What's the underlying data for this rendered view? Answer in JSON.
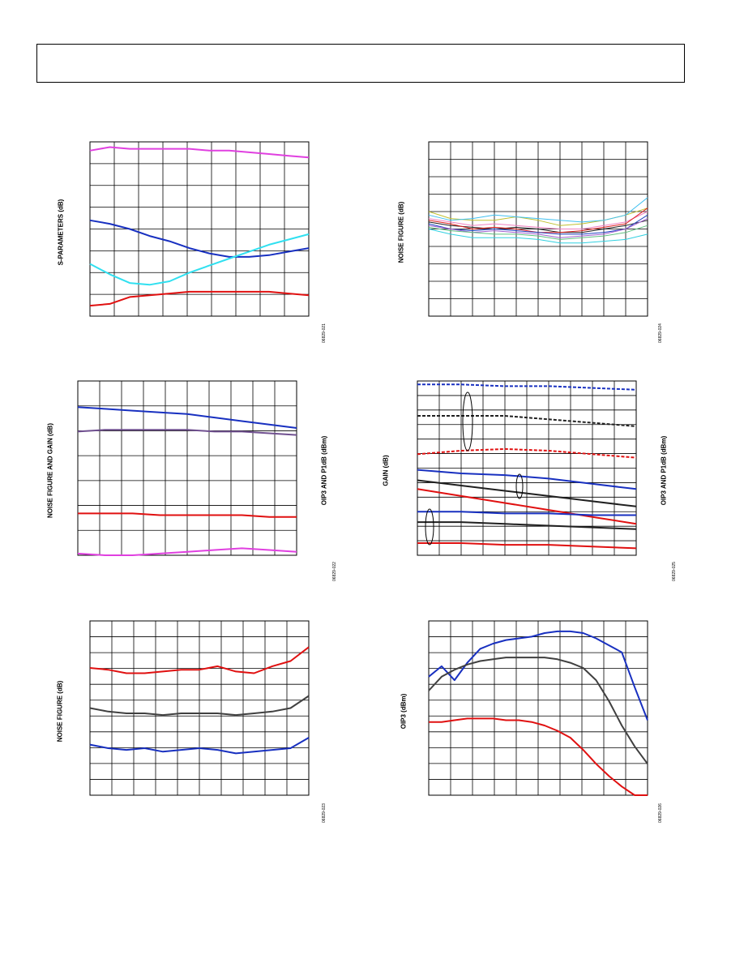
{
  "page": {
    "colors": {
      "grid": "#000000",
      "background": "#ffffff"
    }
  },
  "chart_data": [
    {
      "id": "c1",
      "type": "line",
      "ylabel": "S-PARAMETERS (dB)",
      "figure_id": "06829-021",
      "grid": true,
      "series": [
        {
          "color": "#e040e0",
          "values": [
            0.95,
            0.97,
            0.96,
            0.96,
            0.96,
            0.96,
            0.95,
            0.95,
            0.94,
            0.93,
            0.92,
            0.91
          ]
        },
        {
          "color": "#1830c0",
          "values": [
            0.55,
            0.53,
            0.5,
            0.46,
            0.43,
            0.39,
            0.36,
            0.34,
            0.34,
            0.35,
            0.37,
            0.39
          ]
        },
        {
          "color": "#30e0f0",
          "values": [
            0.3,
            0.24,
            0.19,
            0.18,
            0.2,
            0.25,
            0.29,
            0.33,
            0.37,
            0.41,
            0.44,
            0.47
          ]
        },
        {
          "color": "#e01010",
          "values": [
            0.06,
            0.07,
            0.11,
            0.12,
            0.13,
            0.14,
            0.14,
            0.14,
            0.14,
            0.14,
            0.13,
            0.12
          ]
        }
      ]
    },
    {
      "id": "c2",
      "type": "line",
      "ylabel": "NOISE FIGURE (dB)",
      "figure_id": "06829-024",
      "grid": true,
      "series": [
        {
          "color": "#c0c030",
          "values": [
            0.6,
            0.56,
            0.55,
            0.55,
            0.57,
            0.55,
            0.52,
            0.53,
            0.55,
            0.58,
            0.62
          ]
        },
        {
          "color": "#40c0f0",
          "values": [
            0.58,
            0.55,
            0.56,
            0.58,
            0.57,
            0.56,
            0.55,
            0.54,
            0.55,
            0.58,
            0.68
          ]
        },
        {
          "color": "#f080c0",
          "values": [
            0.56,
            0.54,
            0.52,
            0.53,
            0.52,
            0.51,
            0.5,
            0.5,
            0.52,
            0.54,
            0.6
          ]
        },
        {
          "color": "#202020",
          "values": [
            0.54,
            0.52,
            0.51,
            0.5,
            0.51,
            0.5,
            0.48,
            0.48,
            0.5,
            0.52,
            0.55
          ]
        },
        {
          "color": "#e02020",
          "values": [
            0.55,
            0.53,
            0.5,
            0.51,
            0.5,
            0.48,
            0.48,
            0.49,
            0.51,
            0.53,
            0.62
          ]
        },
        {
          "color": "#2040c0",
          "values": [
            0.53,
            0.5,
            0.49,
            0.5,
            0.49,
            0.48,
            0.47,
            0.47,
            0.48,
            0.5,
            0.58
          ]
        },
        {
          "color": "#a060d0",
          "values": [
            0.52,
            0.5,
            0.48,
            0.49,
            0.48,
            0.47,
            0.45,
            0.46,
            0.47,
            0.5,
            0.56
          ]
        },
        {
          "color": "#60c080",
          "values": [
            0.51,
            0.49,
            0.48,
            0.47,
            0.47,
            0.46,
            0.44,
            0.45,
            0.46,
            0.48,
            0.52
          ]
        },
        {
          "color": "#30d0e0",
          "values": [
            0.5,
            0.47,
            0.45,
            0.45,
            0.45,
            0.44,
            0.42,
            0.42,
            0.43,
            0.44,
            0.47
          ]
        }
      ]
    },
    {
      "id": "c3",
      "type": "line",
      "ylabel": "NOISE FIGURE AND GAIN (dB)",
      "ylabel2": "OIP3 AND P1dB (dBm)",
      "figure_id": "06829-022",
      "grid": true,
      "series": [
        {
          "color": "#1830c0",
          "values": [
            0.85,
            0.84,
            0.83,
            0.82,
            0.81,
            0.79,
            0.77,
            0.75,
            0.73
          ]
        },
        {
          "color": "#705090",
          "values": [
            0.71,
            0.72,
            0.72,
            0.72,
            0.72,
            0.71,
            0.71,
            0.7,
            0.69
          ]
        },
        {
          "color": "#e01010",
          "values": [
            0.24,
            0.24,
            0.24,
            0.23,
            0.23,
            0.23,
            0.23,
            0.22,
            0.22
          ]
        },
        {
          "color": "#e040e0",
          "values": [
            0.01,
            0.0,
            0.0,
            0.01,
            0.02,
            0.03,
            0.04,
            0.03,
            0.02
          ]
        }
      ]
    },
    {
      "id": "c4",
      "type": "line",
      "ylabel": "GAIN (dB)",
      "ylabel2": "OIP3 AND P1dB (dBm)",
      "figure_id": "06829-025",
      "grid": true,
      "series": [
        {
          "color": "#1830c0",
          "dashed": true,
          "values": [
            0.98,
            0.98,
            0.97,
            0.97,
            0.96,
            0.95
          ]
        },
        {
          "color": "#202020",
          "dashed": true,
          "values": [
            0.8,
            0.8,
            0.8,
            0.78,
            0.76,
            0.74
          ]
        },
        {
          "color": "#e01010",
          "dashed": true,
          "values": [
            0.58,
            0.6,
            0.61,
            0.6,
            0.58,
            0.56
          ]
        },
        {
          "color": "#1830c0",
          "dashed": false,
          "values": [
            0.49,
            0.47,
            0.46,
            0.44,
            0.41,
            0.38
          ]
        },
        {
          "color": "#202020",
          "dashed": false,
          "values": [
            0.43,
            0.4,
            0.37,
            0.34,
            0.31,
            0.28
          ]
        },
        {
          "color": "#e01010",
          "dashed": false,
          "values": [
            0.38,
            0.34,
            0.3,
            0.26,
            0.22,
            0.18
          ]
        },
        {
          "color": "#1830c0",
          "dashed": false,
          "values": [
            0.25,
            0.25,
            0.24,
            0.24,
            0.23,
            0.23
          ]
        },
        {
          "color": "#202020",
          "dashed": false,
          "values": [
            0.19,
            0.19,
            0.18,
            0.17,
            0.16,
            0.15
          ]
        },
        {
          "color": "#e01010",
          "dashed": false,
          "values": [
            0.07,
            0.07,
            0.06,
            0.06,
            0.05,
            0.04
          ]
        }
      ]
    },
    {
      "id": "c5",
      "type": "line",
      "ylabel": "NOISE FIGURE (dB)",
      "figure_id": "06829-023",
      "grid": true,
      "series": [
        {
          "color": "#e01010",
          "values": [
            0.73,
            0.72,
            0.7,
            0.7,
            0.71,
            0.72,
            0.72,
            0.74,
            0.71,
            0.7,
            0.74,
            0.77,
            0.85
          ]
        },
        {
          "color": "#404040",
          "values": [
            0.5,
            0.48,
            0.47,
            0.47,
            0.46,
            0.47,
            0.47,
            0.47,
            0.46,
            0.47,
            0.48,
            0.5,
            0.57
          ]
        },
        {
          "color": "#1830c0",
          "values": [
            0.29,
            0.27,
            0.26,
            0.27,
            0.25,
            0.26,
            0.27,
            0.26,
            0.24,
            0.25,
            0.26,
            0.27,
            0.33
          ]
        }
      ]
    },
    {
      "id": "c6",
      "type": "line",
      "ylabel": "OIP3 (dBm)",
      "figure_id": "06829-026",
      "grid": true,
      "series": [
        {
          "color": "#1830c0",
          "values": [
            0.68,
            0.74,
            0.66,
            0.76,
            0.84,
            0.87,
            0.89,
            0.9,
            0.91,
            0.93,
            0.94,
            0.94,
            0.93,
            0.9,
            0.86,
            0.82,
            0.62,
            0.43
          ]
        },
        {
          "color": "#404040",
          "values": [
            0.6,
            0.68,
            0.72,
            0.75,
            0.77,
            0.78,
            0.79,
            0.79,
            0.79,
            0.79,
            0.78,
            0.76,
            0.73,
            0.66,
            0.54,
            0.4,
            0.28,
            0.18
          ]
        },
        {
          "color": "#e01010",
          "values": [
            0.42,
            0.42,
            0.43,
            0.44,
            0.44,
            0.44,
            0.43,
            0.43,
            0.42,
            0.4,
            0.37,
            0.33,
            0.26,
            0.18,
            0.11,
            0.05,
            0.0,
            0.0
          ]
        }
      ]
    }
  ]
}
